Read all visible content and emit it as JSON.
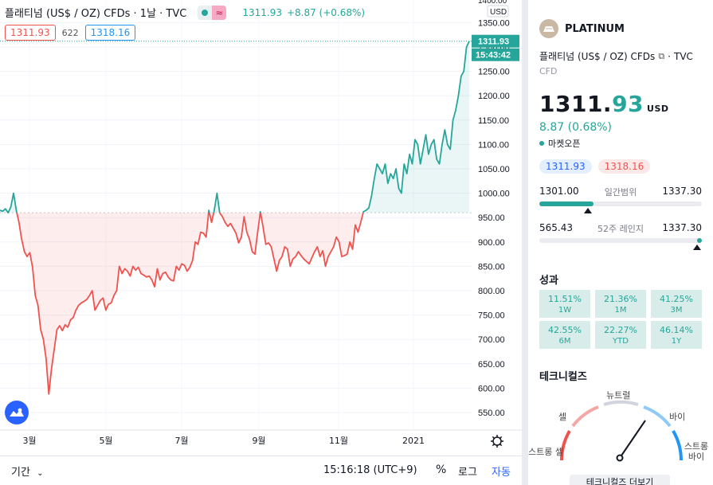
{
  "legend": {
    "title": "플래티넘 (US$ / OZ) CFDs · 1날 · TVC",
    "price": "1311.93",
    "change": "+8.87 (+0.68%)",
    "wave_icon": "wave-icon"
  },
  "quote": {
    "bid": "1311.93",
    "spread": "622",
    "ask": "1318.16"
  },
  "price_axis": {
    "currency": "USD",
    "top_label": "1400.00",
    "ticks": [
      "1350.00",
      "1300.00",
      "1250.00",
      "1200.00",
      "1150.00",
      "1100.00",
      "1050.00",
      "1000.00",
      "950.00",
      "900.00",
      "850.00",
      "800.00",
      "750.00",
      "700.00",
      "650.00",
      "600.00",
      "550.00"
    ],
    "last_price": "1311.93",
    "countdown": "15:43:42"
  },
  "time_axis": {
    "ticks": [
      "3월",
      "5월",
      "7월",
      "9월",
      "11월",
      "2021"
    ]
  },
  "bottom_bar": {
    "period_label": "기간",
    "clock": "15:16:18 (UTC+9)",
    "percent": "%",
    "log": "로그",
    "auto": "자동"
  },
  "symbol": {
    "name": "PLATINUM",
    "description": "플래티넘 (US$ / OZ) CFDs",
    "exchange": "TVC",
    "type": "CFD",
    "price_int": "1311.",
    "price_dec": "93",
    "currency": "USD",
    "change": "8.87 (0.68%)",
    "market_status": "마켓오픈",
    "bid": "1311.93",
    "ask": "1318.16"
  },
  "day_range": {
    "low": "1301.00",
    "label": "일간범위",
    "high": "1337.30",
    "position": 0.3
  },
  "week52_range": {
    "low": "565.43",
    "label": "52주 레인지",
    "high": "1337.30",
    "position": 0.97
  },
  "performance": {
    "title": "성과",
    "items": [
      {
        "value": "11.51%",
        "label": "1W"
      },
      {
        "value": "21.36%",
        "label": "1M"
      },
      {
        "value": "41.25%",
        "label": "3M"
      },
      {
        "value": "42.55%",
        "label": "6M"
      },
      {
        "value": "22.27%",
        "label": "YTD"
      },
      {
        "value": "46.14%",
        "label": "1Y"
      }
    ]
  },
  "technicals": {
    "title": "테크니컬즈",
    "labels": {
      "strong_sell": "스트롱 셀",
      "sell": "셀",
      "neutral": "뉴트럴",
      "buy": "바이",
      "strong_buy": "스트롱 바이"
    },
    "more_button": "테크니컬즈 더보기"
  },
  "chart_data": {
    "type": "area",
    "title": "플래티넘 (US$ / OZ) CFDs · 1날 · TVC",
    "ylim": [
      520,
      1400
    ],
    "baseline": 960,
    "x_labels": [
      "3월",
      "5월",
      "7월",
      "9월",
      "11월",
      "2021"
    ],
    "series": [
      {
        "values": [
          965,
          963,
          968,
          960,
          972,
          1000,
          965,
          940,
          905,
          880,
          870,
          878,
          848,
          790,
          770,
          720,
          700,
          660,
          588,
          640,
          680,
          720,
          728,
          718,
          730,
          725,
          740,
          745,
          760,
          770,
          775,
          778,
          782,
          790,
          800,
          760,
          770,
          780,
          785,
          760,
          772,
          775,
          790,
          800,
          850,
          835,
          845,
          840,
          830,
          850,
          842,
          848,
          835,
          832,
          828,
          830,
          822,
          808,
          845,
          822,
          835,
          838,
          828,
          822,
          820,
          850,
          842,
          855,
          852,
          840,
          848,
          862,
          900,
          895,
          920,
          918,
          910,
          965,
          940,
          965,
          1000,
          960,
          952,
          940,
          932,
          938,
          928,
          918,
          898,
          910,
          952,
          920,
          905,
          880,
          875,
          920,
          962,
          930,
          895,
          898,
          890,
          865,
          840,
          862,
          870,
          890,
          885,
          850,
          865,
          870,
          880,
          872,
          865,
          860,
          855,
          868,
          880,
          890,
          870,
          882,
          850,
          870,
          880,
          890,
          910,
          900,
          870,
          872,
          875,
          900,
          885,
          935,
          920,
          940,
          962,
          965,
          970,
          995,
          1030,
          1060,
          1050,
          1040,
          1060,
          1020,
          1040,
          1030,
          1050,
          1010,
          1000,
          1060,
          1040,
          1080,
          1060,
          1110,
          1100,
          1060,
          1090,
          1120,
          1080,
          1100,
          1110,
          1070,
          1060,
          1100,
          1130,
          1100,
          1090,
          1150,
          1170,
          1200,
          1240,
          1250,
          1300,
          1311.93
        ]
      }
    ]
  }
}
